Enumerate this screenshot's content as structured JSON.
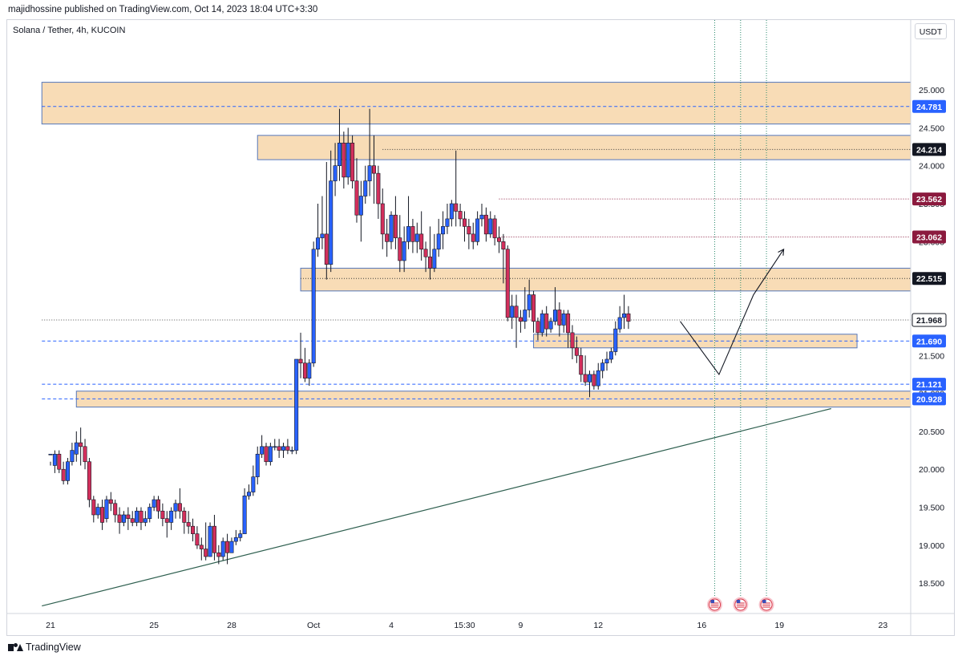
{
  "header": {
    "publish_line": "majidhossine published on TradingView.com, Oct 14, 2023 18:04 UTC+3:30"
  },
  "chart_header": {
    "symbol_title": "Solana / Tether, 4h, KUCOIN",
    "currency": "USDT"
  },
  "footer": {
    "brand": "TradingView"
  },
  "colors": {
    "up_candle": "#2962ff",
    "down_candle": "#d32f5c",
    "zone_fill": "#f8dcb6",
    "zone_border": "#5577bb",
    "blue_line": "#2962ff",
    "red_line": "#8b1a3e",
    "trendline": "#2e5f4f",
    "axis_text": "#131722",
    "badge_dark": "#131722"
  },
  "chart_data": {
    "type": "candlestick",
    "title": "Solana / Tether, 4h, KUCOIN",
    "ylim": [
      18.1,
      25.55
    ],
    "y_ticks": [
      "25.000",
      "24.500",
      "24.000",
      "23.500",
      "23.000",
      "22.500",
      "22.000",
      "21.500",
      "21.000",
      "20.500",
      "20.000",
      "19.500",
      "19.000",
      "18.500"
    ],
    "x_ticks": [
      {
        "label": "21",
        "bar": 0
      },
      {
        "label": "25",
        "bar": 24
      },
      {
        "label": "28",
        "bar": 42
      },
      {
        "label": "Oct",
        "bar": 61
      },
      {
        "label": "4",
        "bar": 79
      },
      {
        "label": "15:30",
        "bar": 96
      },
      {
        "label": "9",
        "bar": 109
      },
      {
        "label": "12",
        "bar": 127
      },
      {
        "label": "16",
        "bar": 151
      },
      {
        "label": "19",
        "bar": 169
      },
      {
        "label": "23",
        "bar": 193
      }
    ],
    "candles": [
      [
        20.2,
        20.1,
        20.2,
        20.05
      ],
      [
        20.05,
        20.25,
        20.2,
        19.95
      ],
      [
        20.2,
        20.25,
        20.0,
        19.95
      ],
      [
        20.0,
        20.1,
        19.85,
        19.8
      ],
      [
        19.85,
        20.15,
        20.1,
        19.8
      ],
      [
        20.1,
        20.35,
        20.25,
        20.05
      ],
      [
        20.2,
        20.5,
        20.35,
        20.1
      ],
      [
        20.35,
        20.55,
        20.3,
        20.05
      ],
      [
        20.3,
        20.4,
        20.1,
        20.0
      ],
      [
        20.1,
        20.15,
        19.6,
        19.5
      ],
      [
        19.6,
        19.65,
        19.4,
        19.3
      ],
      [
        19.4,
        19.55,
        19.5,
        19.35
      ],
      [
        19.5,
        19.6,
        19.3,
        19.2
      ],
      [
        19.35,
        19.65,
        19.6,
        19.3
      ],
      [
        19.6,
        19.7,
        19.55,
        19.45
      ],
      [
        19.55,
        19.6,
        19.4,
        19.3
      ],
      [
        19.4,
        19.5,
        19.3,
        19.15
      ],
      [
        19.3,
        19.45,
        19.4,
        19.25
      ],
      [
        19.4,
        19.5,
        19.35,
        19.2
      ],
      [
        19.35,
        19.45,
        19.3,
        19.25
      ],
      [
        19.3,
        19.5,
        19.45,
        19.25
      ],
      [
        19.45,
        19.5,
        19.3,
        19.2
      ],
      [
        19.3,
        19.45,
        19.35,
        19.25
      ],
      [
        19.35,
        19.55,
        19.5,
        19.3
      ],
      [
        19.5,
        19.65,
        19.6,
        19.45
      ],
      [
        19.6,
        19.65,
        19.45,
        19.35
      ],
      [
        19.45,
        19.55,
        19.35,
        19.25
      ],
      [
        19.35,
        19.45,
        19.3,
        19.1
      ],
      [
        19.3,
        19.5,
        19.45,
        19.2
      ],
      [
        19.45,
        19.6,
        19.55,
        19.35
      ],
      [
        19.55,
        19.75,
        19.45,
        19.35
      ],
      [
        19.45,
        19.5,
        19.3,
        19.15
      ],
      [
        19.3,
        19.45,
        19.25,
        19.15
      ],
      [
        19.25,
        19.35,
        19.15,
        19.05
      ],
      [
        19.15,
        19.25,
        19.0,
        18.95
      ],
      [
        19.0,
        19.1,
        18.95,
        18.8
      ],
      [
        18.95,
        19.3,
        18.85,
        18.8
      ],
      [
        18.85,
        19.3,
        19.25,
        18.85
      ],
      [
        19.25,
        19.4,
        18.9,
        18.8
      ],
      [
        18.9,
        19.0,
        18.85,
        18.75
      ],
      [
        18.85,
        19.1,
        19.05,
        18.8
      ],
      [
        19.05,
        19.15,
        18.9,
        18.75
      ],
      [
        18.9,
        19.1,
        19.05,
        18.9
      ],
      [
        19.05,
        19.2,
        19.1,
        19.0
      ],
      [
        19.1,
        19.2,
        19.15,
        19.05
      ],
      [
        19.15,
        19.75,
        19.65,
        19.15
      ],
      [
        19.65,
        19.8,
        19.7,
        19.6
      ],
      [
        19.7,
        20.05,
        19.9,
        19.65
      ],
      [
        19.9,
        20.3,
        20.2,
        19.8
      ],
      [
        20.2,
        20.45,
        20.3,
        20.15
      ],
      [
        20.3,
        20.35,
        20.1,
        20.05
      ],
      [
        20.1,
        20.35,
        20.3,
        20.05
      ],
      [
        20.3,
        20.4,
        20.3,
        20.25
      ],
      [
        20.3,
        20.4,
        20.25,
        20.15
      ],
      [
        20.25,
        20.35,
        20.3,
        20.15
      ],
      [
        20.3,
        20.4,
        20.25,
        20.2
      ],
      [
        20.25,
        20.3,
        20.25,
        20.2
      ],
      [
        20.25,
        21.4,
        21.45,
        20.2
      ],
      [
        21.45,
        21.8,
        21.4,
        21.2
      ],
      [
        21.4,
        21.6,
        21.2,
        21.15
      ],
      [
        21.2,
        21.45,
        21.4,
        21.1
      ],
      [
        21.4,
        23.0,
        22.9,
        21.35
      ],
      [
        22.9,
        23.5,
        23.05,
        22.8
      ],
      [
        23.05,
        23.6,
        23.1,
        22.9
      ],
      [
        23.1,
        24.05,
        22.7,
        22.5
      ],
      [
        22.7,
        24.2,
        23.8,
        22.6
      ],
      [
        23.8,
        24.3,
        24.0,
        23.6
      ],
      [
        24.0,
        24.75,
        24.3,
        23.8
      ],
      [
        24.3,
        24.45,
        23.85,
        23.7
      ],
      [
        23.85,
        24.5,
        24.3,
        23.75
      ],
      [
        24.3,
        24.4,
        23.8,
        23.7
      ],
      [
        23.8,
        24.1,
        23.35,
        23.25
      ],
      [
        23.35,
        23.8,
        23.6,
        23.0
      ],
      [
        23.6,
        24.0,
        23.8,
        23.5
      ],
      [
        23.8,
        24.75,
        24.0,
        23.6
      ],
      [
        24.0,
        24.4,
        23.9,
        23.5
      ],
      [
        23.9,
        24.0,
        23.5,
        23.3
      ],
      [
        23.5,
        23.7,
        23.1,
        22.9
      ],
      [
        23.1,
        23.3,
        23.0,
        22.8
      ],
      [
        23.0,
        23.4,
        23.35,
        22.9
      ],
      [
        23.35,
        23.6,
        23.05,
        22.9
      ],
      [
        23.05,
        23.35,
        22.75,
        22.6
      ],
      [
        22.75,
        23.2,
        23.0,
        22.6
      ],
      [
        23.0,
        23.6,
        23.2,
        22.9
      ],
      [
        23.2,
        23.3,
        23.0,
        22.85
      ],
      [
        23.0,
        23.25,
        23.1,
        22.85
      ],
      [
        23.1,
        23.4,
        22.9,
        22.75
      ],
      [
        22.9,
        23.0,
        22.8,
        22.6
      ],
      [
        22.8,
        23.2,
        22.65,
        22.5
      ],
      [
        22.65,
        23.1,
        22.9,
        22.6
      ],
      [
        22.9,
        23.3,
        23.1,
        22.8
      ],
      [
        23.1,
        23.4,
        23.2,
        22.9
      ],
      [
        23.2,
        23.5,
        23.3,
        23.1
      ],
      [
        23.3,
        23.55,
        23.5,
        23.2
      ],
      [
        23.5,
        24.2,
        23.4,
        23.2
      ],
      [
        23.4,
        23.5,
        23.3,
        23.2
      ],
      [
        23.3,
        23.4,
        23.2,
        23.0
      ],
      [
        23.2,
        23.3,
        23.1,
        22.9
      ],
      [
        23.1,
        23.25,
        23.0,
        22.9
      ],
      [
        23.0,
        23.4,
        23.3,
        22.95
      ],
      [
        23.3,
        23.5,
        23.35,
        23.2
      ],
      [
        23.35,
        23.45,
        23.1,
        23.0
      ],
      [
        23.1,
        23.4,
        23.3,
        23.05
      ],
      [
        23.3,
        23.35,
        23.05,
        22.95
      ],
      [
        23.05,
        23.2,
        23.0,
        22.85
      ],
      [
        23.0,
        23.1,
        22.9,
        22.45
      ],
      [
        22.9,
        22.95,
        22.0,
        21.95
      ],
      [
        22.0,
        22.3,
        22.15,
        21.85
      ],
      [
        22.15,
        22.3,
        22.0,
        21.6
      ],
      [
        22.0,
        22.1,
        21.95,
        21.8
      ],
      [
        21.95,
        22.4,
        22.1,
        21.85
      ],
      [
        22.1,
        22.5,
        22.3,
        22.0
      ],
      [
        22.3,
        22.35,
        21.95,
        21.8
      ],
      [
        21.95,
        22.0,
        21.8,
        21.7
      ],
      [
        21.8,
        22.1,
        22.05,
        21.75
      ],
      [
        22.05,
        22.15,
        21.85,
        21.75
      ],
      [
        21.85,
        22.0,
        21.95,
        21.8
      ],
      [
        21.95,
        22.4,
        22.1,
        21.9
      ],
      [
        22.1,
        22.2,
        21.9,
        21.75
      ],
      [
        21.9,
        22.1,
        22.05,
        21.8
      ],
      [
        22.05,
        22.1,
        21.8,
        21.6
      ],
      [
        21.8,
        21.9,
        21.6,
        21.45
      ],
      [
        21.6,
        21.75,
        21.5,
        21.4
      ],
      [
        21.5,
        21.6,
        21.25,
        21.15
      ],
      [
        21.25,
        21.5,
        21.15,
        21.1
      ],
      [
        21.15,
        21.3,
        21.25,
        20.95
      ],
      [
        21.25,
        21.3,
        21.1,
        21.05
      ],
      [
        21.1,
        21.4,
        21.3,
        21.05
      ],
      [
        21.3,
        21.45,
        21.4,
        21.2
      ],
      [
        21.4,
        21.55,
        21.45,
        21.3
      ],
      [
        21.45,
        21.6,
        21.55,
        21.4
      ],
      [
        21.55,
        21.95,
        21.85,
        21.5
      ],
      [
        21.85,
        22.15,
        22.0,
        21.8
      ],
      [
        22.0,
        22.3,
        22.05,
        21.85
      ],
      [
        22.05,
        22.15,
        21.95,
        21.85
      ]
    ],
    "levels": [
      {
        "price": 24.781,
        "label": "24.781",
        "style": "blue-dashed",
        "from_bar": -2
      },
      {
        "price": 24.214,
        "label": "24.214",
        "style": "dark-dotted",
        "from_bar": 77
      },
      {
        "price": 23.562,
        "label": "23.562",
        "style": "red-dotted",
        "from_bar": 104
      },
      {
        "price": 23.062,
        "label": "23.062",
        "style": "red-dotted",
        "from_bar": 104
      },
      {
        "price": 22.515,
        "label": "22.515",
        "style": "dark-dotted",
        "from_bar": 58
      },
      {
        "price": 21.968,
        "label": "21.968",
        "style": "gray-dotted",
        "from_bar": -2
      },
      {
        "price": 21.69,
        "label": "21.690",
        "style": "blue-dashed",
        "from_bar": -2
      },
      {
        "price": 21.121,
        "label": "21.121",
        "style": "blue-dashed",
        "from_bar": -2
      },
      {
        "price": 20.928,
        "label": "20.928",
        "style": "blue-dashed",
        "from_bar": -2
      }
    ],
    "zones": [
      {
        "top": 25.1,
        "bottom": 24.55,
        "from_bar": -2
      },
      {
        "top": 24.4,
        "bottom": 24.08,
        "from_bar": 48
      },
      {
        "top": 22.65,
        "bottom": 22.35,
        "from_bar": 58
      },
      {
        "top": 21.78,
        "bottom": 21.6,
        "from_bar": 112,
        "to_bar": 187
      },
      {
        "top": 21.03,
        "bottom": 20.82,
        "from_bar": 6
      }
    ],
    "trendline": {
      "from": {
        "bar": -2,
        "price": 18.2
      },
      "to": {
        "bar": 181,
        "price": 20.8
      }
    },
    "projection": [
      {
        "bar": 146,
        "price": 21.95
      },
      {
        "bar": 155,
        "price": 21.25
      },
      {
        "bar": 163,
        "price": 22.3
      },
      {
        "bar": 170,
        "price": 22.9
      }
    ],
    "event_lines": [
      {
        "bar": 154
      },
      {
        "bar": 160
      },
      {
        "bar": 166
      }
    ]
  }
}
